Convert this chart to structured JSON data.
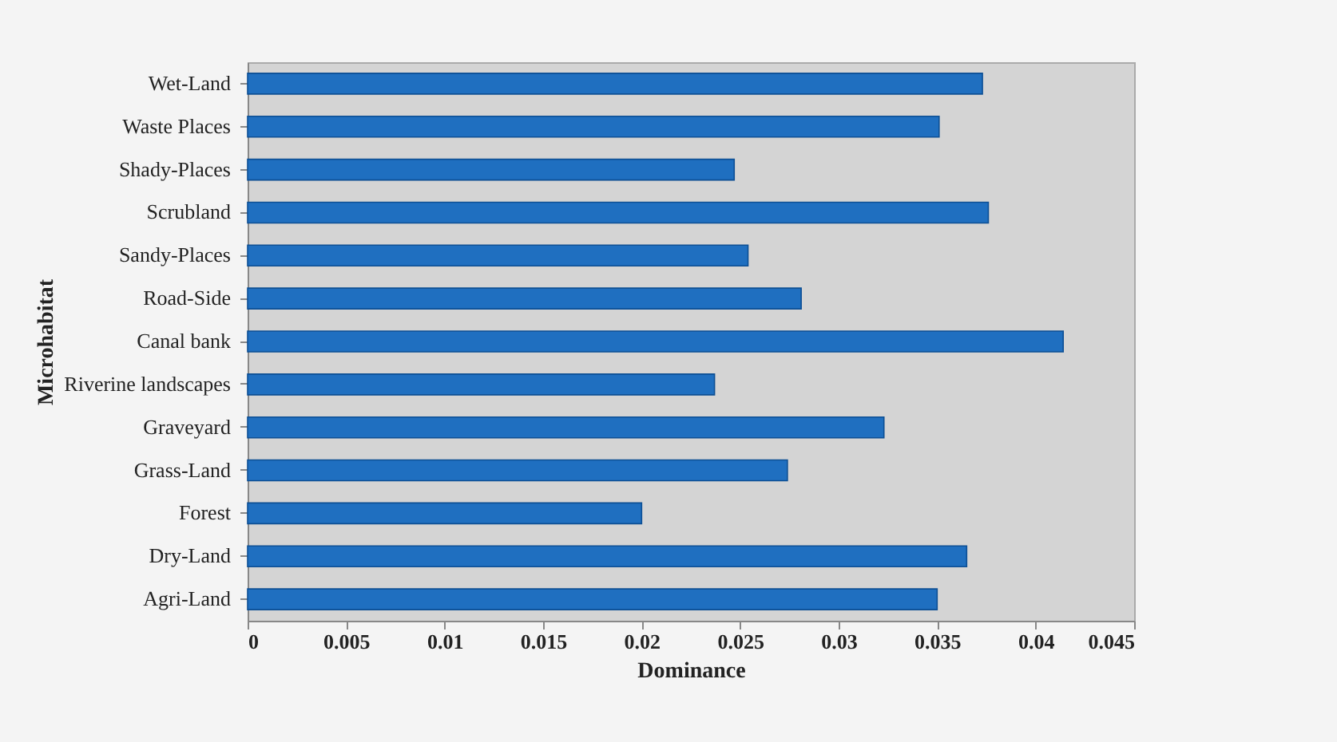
{
  "chart_data": {
    "type": "bar",
    "orientation": "horizontal",
    "xlabel": "Dominance",
    "ylabel": "Microhabitat",
    "categories": [
      "Wet-Land",
      "Waste Places",
      "Shady-Places",
      "Scrubland",
      "Sandy-Places",
      "Road-Side",
      "Canal bank",
      "Riverine landscapes",
      "Graveyard",
      "Grass-Land",
      "Forest",
      "Dry-Land",
      "Agri-Land"
    ],
    "values": [
      0.0373,
      0.0351,
      0.0247,
      0.0376,
      0.0254,
      0.0281,
      0.0414,
      0.0237,
      0.0323,
      0.0274,
      0.02,
      0.0365,
      0.035
    ],
    "color": "#1f6fc0",
    "xlim": [
      0,
      0.045
    ],
    "xticks": [
      0,
      0.005,
      0.01,
      0.015,
      0.02,
      0.025,
      0.03,
      0.035,
      0.04,
      0.045
    ],
    "grid": false
  }
}
